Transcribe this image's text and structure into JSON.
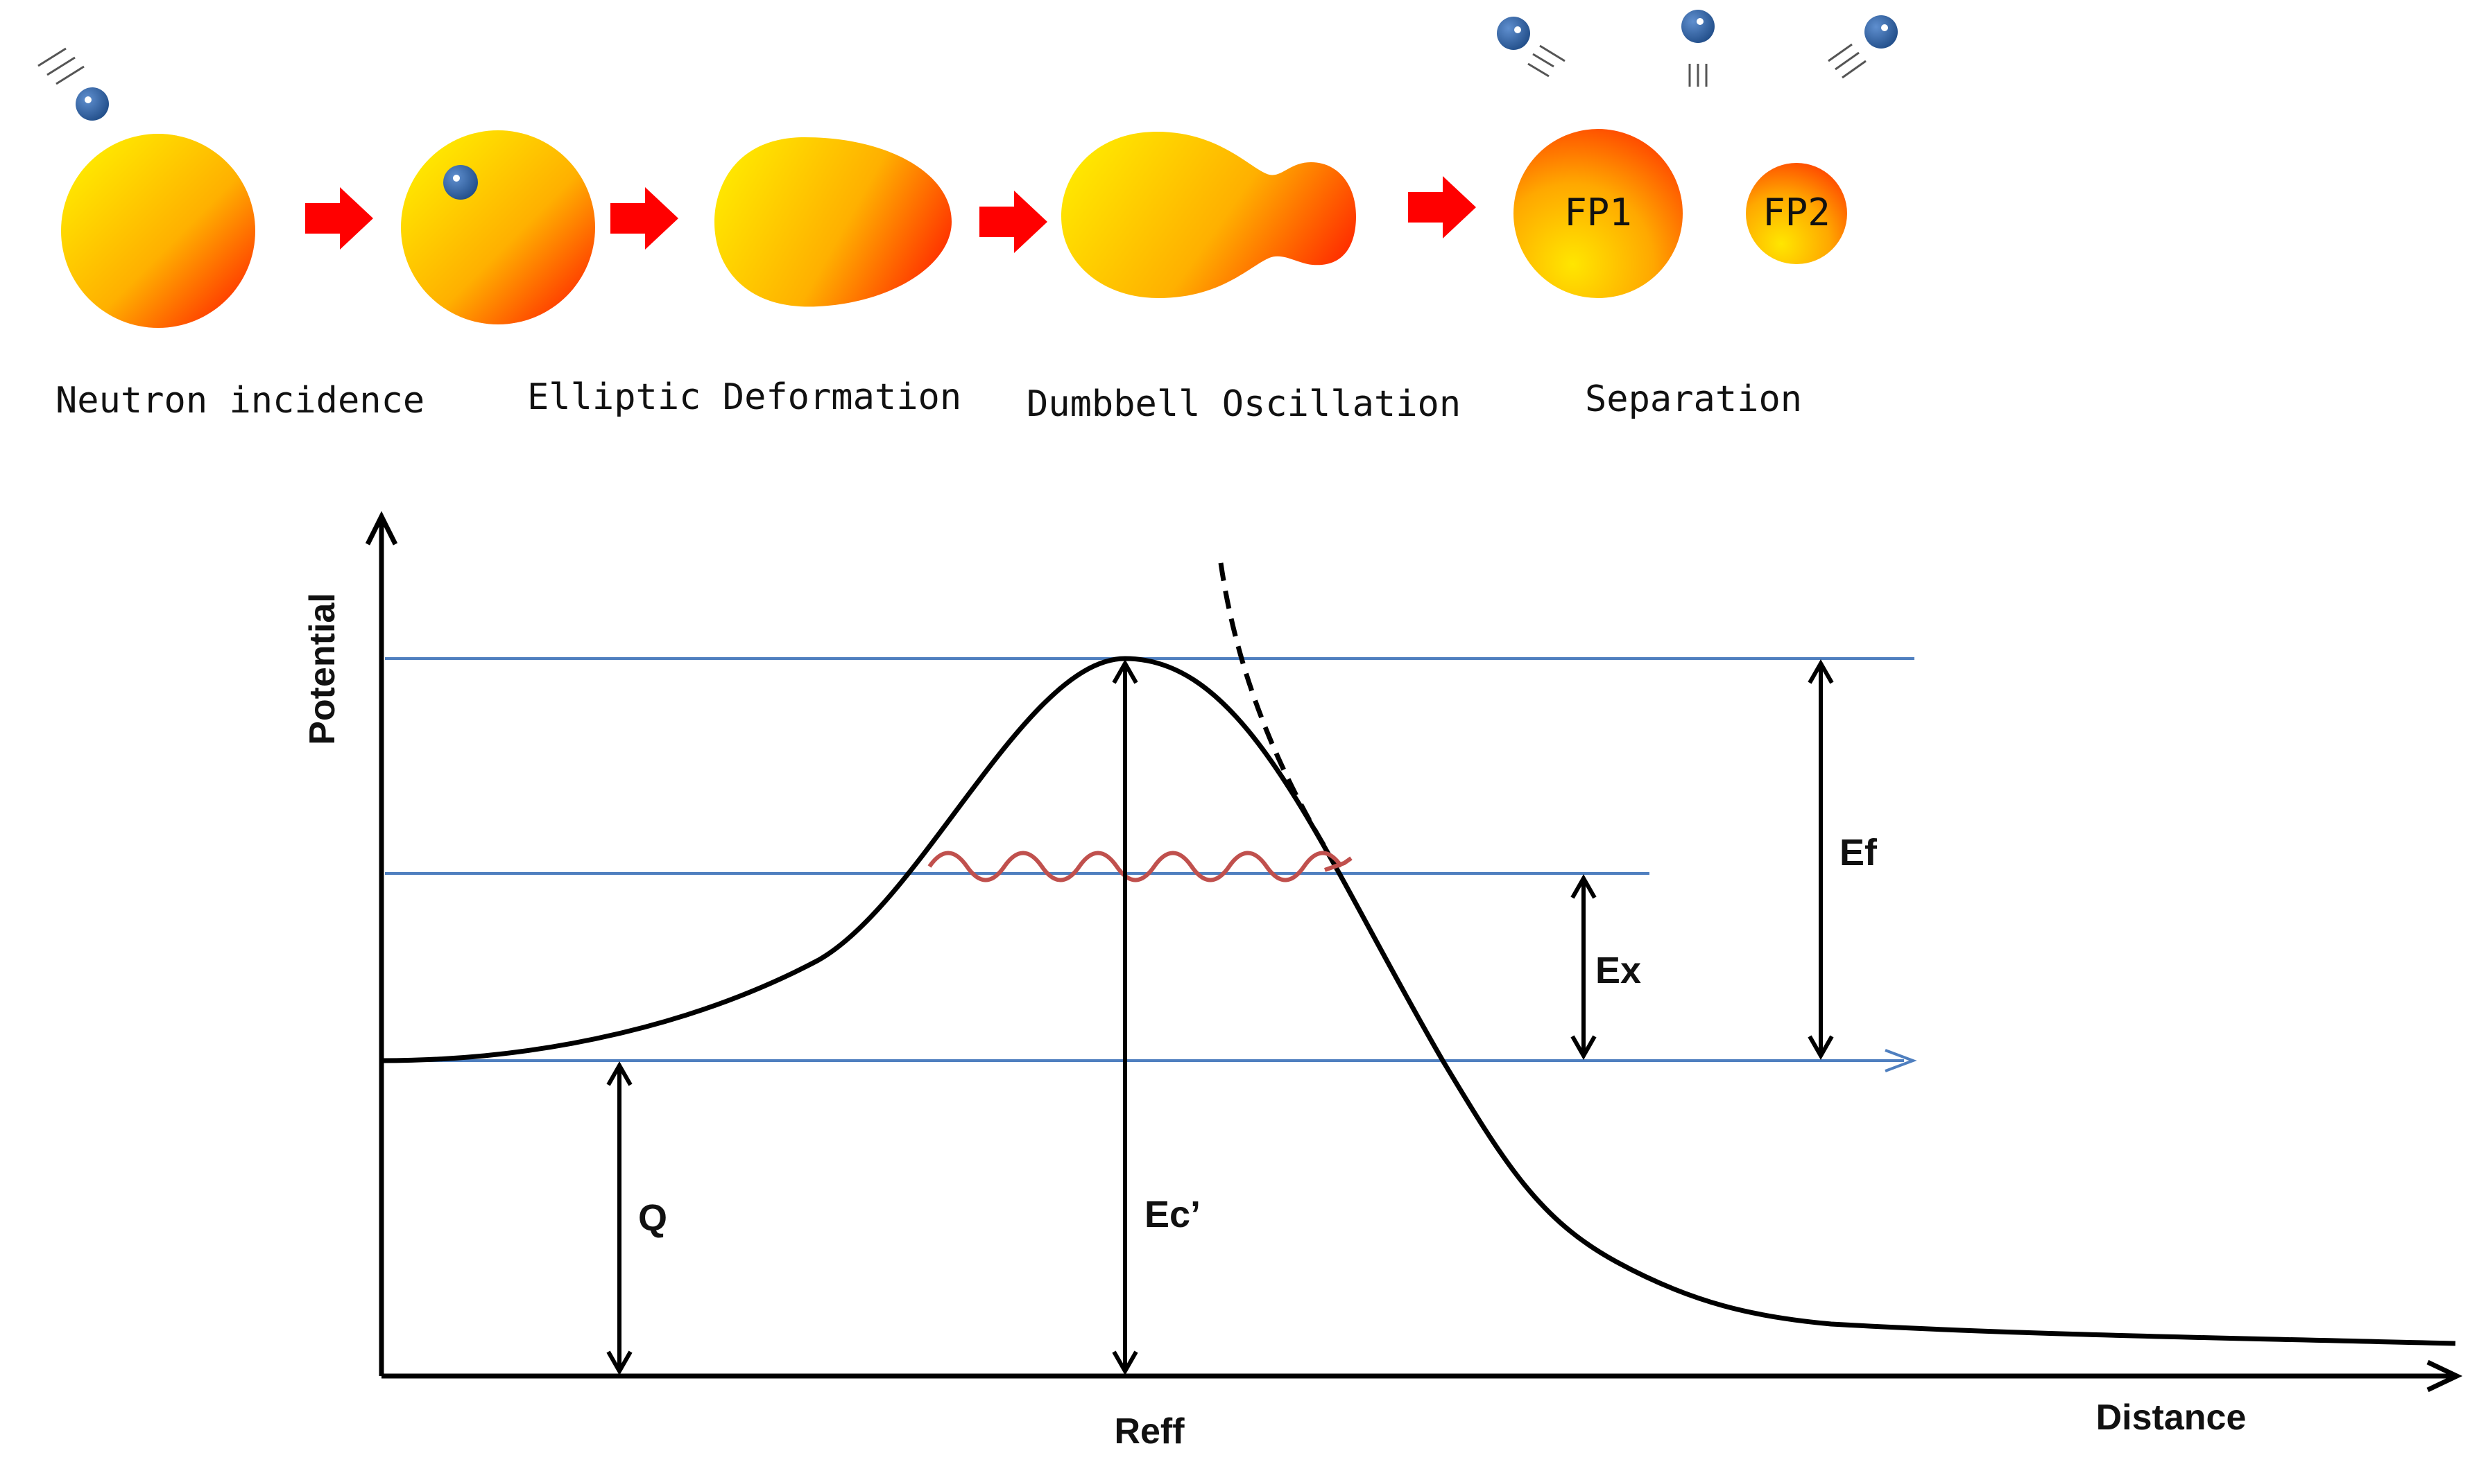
{
  "stages": [
    {
      "label": "Neutron incidence"
    },
    {
      "label": "Elliptic Deformation"
    },
    {
      "label": "Dumbbell Oscillation"
    },
    {
      "label": "Separation"
    }
  ],
  "fragments": {
    "fp1": "FP1",
    "fp2": "FP2"
  },
  "axes": {
    "y_label": "Potential",
    "x_label": "Distance",
    "x_marker": "Reff"
  },
  "energies": {
    "q": "Q",
    "ec": "Ec’",
    "ex": "Ex",
    "ef": "Ef"
  },
  "colors": {
    "nucleus_start": "#FFE600",
    "nucleus_mid": "#FFB300",
    "nucleus_end": "#FF2A00",
    "arrow": "#FF0000",
    "neutron": "#2B5C9E",
    "level_line": "#4F7FBF",
    "oscillation": "#C0504D",
    "curve": "#000000"
  }
}
